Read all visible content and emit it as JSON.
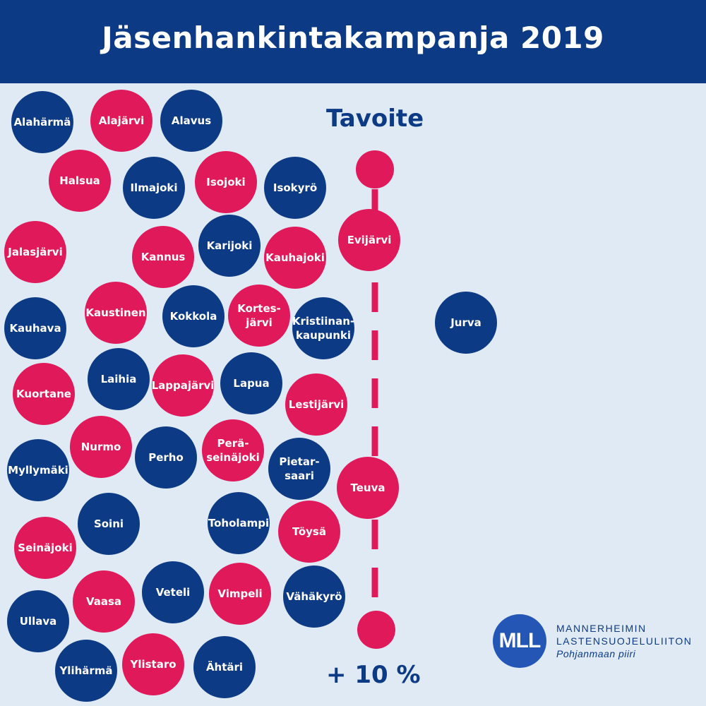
{
  "header": {
    "title": "Jäsenhankintakampanja 2019"
  },
  "colors": {
    "navy": "#0d3a84",
    "red": "#e0195a",
    "background": "#dfeaf5"
  },
  "municipalities": [
    {
      "label": "Alahärmä",
      "color": "navy"
    },
    {
      "label": "Alajärvi",
      "color": "red"
    },
    {
      "label": "Alavus",
      "color": "navy"
    },
    {
      "label": "Halsua",
      "color": "red"
    },
    {
      "label": "Ilmajoki",
      "color": "navy"
    },
    {
      "label": "Isojoki",
      "color": "red"
    },
    {
      "label": "Isokyrö",
      "color": "navy"
    },
    {
      "label": "Jalasjärvi",
      "color": "red"
    },
    {
      "label": "Kannus",
      "color": "red"
    },
    {
      "label": "Karijoki",
      "color": "navy"
    },
    {
      "label": "Kauhajoki",
      "color": "red"
    },
    {
      "label": "Kauhava",
      "color": "navy"
    },
    {
      "label": "Kaustinen",
      "color": "red"
    },
    {
      "label": "Kokkola",
      "color": "navy"
    },
    {
      "label": "Kortes-\njärvi",
      "color": "red"
    },
    {
      "label": "Kristiinan-\nkaupunki",
      "color": "navy"
    },
    {
      "label": "Kuortane",
      "color": "red"
    },
    {
      "label": "Laihia",
      "color": "navy"
    },
    {
      "label": "Lappajärvi",
      "color": "red"
    },
    {
      "label": "Lapua",
      "color": "navy"
    },
    {
      "label": "Lestijärvi",
      "color": "red"
    },
    {
      "label": "Myllymäki",
      "color": "navy"
    },
    {
      "label": "Nurmo",
      "color": "red"
    },
    {
      "label": "Perho",
      "color": "navy"
    },
    {
      "label": "Perä-\nseinäjoki",
      "color": "red"
    },
    {
      "label": "Pietar-\nsaari",
      "color": "navy"
    },
    {
      "label": "Seinäjoki",
      "color": "red"
    },
    {
      "label": "Soini",
      "color": "navy"
    },
    {
      "label": "Toholampi",
      "color": "navy"
    },
    {
      "label": "Töysä",
      "color": "red"
    },
    {
      "label": "Ullava",
      "color": "navy"
    },
    {
      "label": "Vaasa",
      "color": "red"
    },
    {
      "label": "Veteli",
      "color": "navy"
    },
    {
      "label": "Vimpeli",
      "color": "red"
    },
    {
      "label": "Vähäkyrö",
      "color": "navy"
    },
    {
      "label": "Ylihärmä",
      "color": "navy"
    },
    {
      "label": "Ylistaro",
      "color": "red"
    },
    {
      "label": "Ähtäri",
      "color": "navy"
    }
  ],
  "goal": {
    "title": "Tavoite",
    "percent_label": "+ 10 %",
    "on_scale": [
      {
        "label": "Evijärvi",
        "color": "red"
      },
      {
        "label": "Teuva",
        "color": "red"
      }
    ],
    "reached": [
      {
        "label": "Jurva",
        "color": "navy"
      }
    ]
  },
  "logo": {
    "mark": "MLL",
    "line1": "MANNERHEIMIN",
    "line2": "LASTENSUOJELULIITON",
    "line3": "Pohjanmaan piiri"
  }
}
